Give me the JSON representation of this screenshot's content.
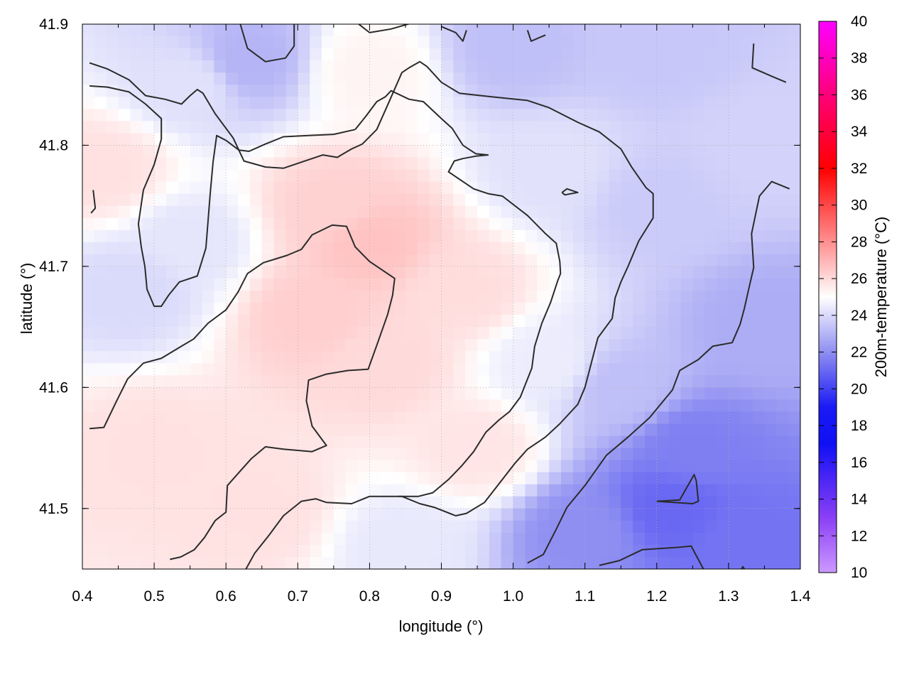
{
  "chart_data": {
    "type": "heatmap",
    "xlabel": "longitude (°)",
    "ylabel": "latitude (°)",
    "colorbar_label": "200m-temperature (°C)",
    "xlim": [
      0.4,
      1.4
    ],
    "ylim": [
      41.45,
      41.9
    ],
    "x_ticks": [
      "0.4",
      "0.5",
      "0.6",
      "0.7",
      "0.8",
      "0.9",
      "1.0",
      "1.1",
      "1.2",
      "1.3",
      "1.4"
    ],
    "y_ticks": [
      "41.5",
      "41.6",
      "41.7",
      "41.8",
      "41.9"
    ],
    "colorbar_range": [
      10,
      40
    ],
    "colorbar_ticks": [
      "10",
      "12",
      "14",
      "16",
      "18",
      "20",
      "22",
      "24",
      "26",
      "28",
      "30",
      "32",
      "34",
      "36",
      "38",
      "40"
    ],
    "grid": true,
    "colormap": [
      {
        "t": 10,
        "color": "#cc99ff"
      },
      {
        "t": 13,
        "color": "#8a3ff5"
      },
      {
        "t": 17,
        "color": "#1010f5"
      },
      {
        "t": 19,
        "color": "#1a1af5"
      },
      {
        "t": 22,
        "color": "#8f8ff2"
      },
      {
        "t": 25,
        "color": "#ffffff"
      },
      {
        "t": 28,
        "color": "#ff8f8f"
      },
      {
        "t": 32,
        "color": "#ff0000"
      },
      {
        "t": 36,
        "color": "#ff007a"
      },
      {
        "t": 40,
        "color": "#ff00ff"
      }
    ],
    "field_anchors": [
      {
        "lon": 0.43,
        "lat": 41.78,
        "t": 25.8
      },
      {
        "lon": 0.55,
        "lat": 41.85,
        "t": 24.2
      },
      {
        "lon": 0.63,
        "lat": 41.87,
        "t": 23.0
      },
      {
        "lon": 0.8,
        "lat": 41.86,
        "t": 25.3
      },
      {
        "lon": 0.75,
        "lat": 41.75,
        "t": 26.2
      },
      {
        "lon": 0.8,
        "lat": 41.72,
        "t": 26.6
      },
      {
        "lon": 0.72,
        "lat": 41.66,
        "t": 26.3
      },
      {
        "lon": 0.82,
        "lat": 41.62,
        "t": 26.0
      },
      {
        "lon": 0.93,
        "lat": 41.68,
        "t": 25.9
      },
      {
        "lon": 0.95,
        "lat": 41.55,
        "t": 25.7
      },
      {
        "lon": 0.5,
        "lat": 41.55,
        "t": 25.8
      },
      {
        "lon": 0.55,
        "lat": 41.72,
        "t": 24.3
      },
      {
        "lon": 0.47,
        "lat": 41.68,
        "t": 24.0
      },
      {
        "lon": 0.65,
        "lat": 41.5,
        "t": 25.8
      },
      {
        "lon": 0.85,
        "lat": 41.47,
        "t": 24.4
      },
      {
        "lon": 1.05,
        "lat": 41.62,
        "t": 24.5
      },
      {
        "lon": 1.05,
        "lat": 41.78,
        "t": 24.2
      },
      {
        "lon": 1.0,
        "lat": 41.88,
        "t": 23.3
      },
      {
        "lon": 1.2,
        "lat": 41.88,
        "t": 23.5
      },
      {
        "lon": 1.2,
        "lat": 41.75,
        "t": 23.6
      },
      {
        "lon": 1.35,
        "lat": 41.8,
        "t": 23.8
      },
      {
        "lon": 1.35,
        "lat": 41.65,
        "t": 22.8
      },
      {
        "lon": 1.15,
        "lat": 41.6,
        "t": 23.3
      },
      {
        "lon": 1.25,
        "lat": 41.55,
        "t": 21.6
      },
      {
        "lon": 1.22,
        "lat": 41.5,
        "t": 21.0
      },
      {
        "lon": 1.1,
        "lat": 41.48,
        "t": 22.0
      },
      {
        "lon": 1.32,
        "lat": 41.47,
        "t": 21.3
      }
    ],
    "contours": [
      {
        "points": [
          [
            0.41,
            41.868
          ],
          [
            0.435,
            41.863
          ],
          [
            0.465,
            41.854
          ],
          [
            0.488,
            41.841
          ],
          [
            0.515,
            41.838
          ],
          [
            0.538,
            41.834
          ],
          [
            0.55,
            41.841
          ],
          [
            0.56,
            41.846
          ],
          [
            0.568,
            41.843
          ],
          [
            0.585,
            41.826
          ],
          [
            0.61,
            41.806
          ],
          [
            0.625,
            41.787
          ],
          [
            0.655,
            41.782
          ],
          [
            0.68,
            41.781
          ],
          [
            0.71,
            41.787
          ],
          [
            0.735,
            41.792
          ],
          [
            0.755,
            41.79
          ],
          [
            0.775,
            41.797
          ],
          [
            0.79,
            41.801
          ]
        ]
      },
      {
        "points": [
          [
            0.62,
            41.9
          ],
          [
            0.63,
            41.88
          ],
          [
            0.655,
            41.869
          ],
          [
            0.683,
            41.872
          ],
          [
            0.695,
            41.882
          ],
          [
            0.695,
            41.9
          ]
        ]
      },
      {
        "points": [
          [
            0.785,
            41.9
          ],
          [
            0.8,
            41.893
          ],
          [
            0.83,
            41.896
          ],
          [
            0.865,
            41.902
          ]
        ]
      },
      {
        "points": [
          [
            0.9,
            41.898
          ],
          [
            0.92,
            41.893
          ],
          [
            0.93,
            41.886
          ],
          [
            0.935,
            41.895
          ]
        ]
      },
      {
        "points": [
          [
            1.02,
            41.895
          ],
          [
            1.025,
            41.886
          ],
          [
            1.045,
            41.891
          ]
        ]
      },
      {
        "points": [
          [
            1.335,
            41.884
          ],
          [
            1.333,
            41.864
          ],
          [
            1.36,
            41.857
          ],
          [
            1.38,
            41.852
          ]
        ]
      },
      {
        "points": [
          [
            0.79,
            41.801
          ],
          [
            0.81,
            41.813
          ],
          [
            0.825,
            41.833
          ],
          [
            0.845,
            41.86
          ],
          [
            0.855,
            41.864
          ],
          [
            0.87,
            41.869
          ],
          [
            0.88,
            41.865
          ],
          [
            0.9,
            41.852
          ],
          [
            0.925,
            41.843
          ],
          [
            0.97,
            41.84
          ],
          [
            1.02,
            41.837
          ],
          [
            1.05,
            41.831
          ],
          [
            1.09,
            41.819
          ],
          [
            1.12,
            41.811
          ],
          [
            1.15,
            41.797
          ],
          [
            1.165,
            41.782
          ],
          [
            1.185,
            41.765
          ],
          [
            1.195,
            41.76
          ],
          [
            1.195,
            41.74
          ],
          [
            1.175,
            41.721
          ],
          [
            1.16,
            41.7
          ],
          [
            1.15,
            41.687
          ],
          [
            1.142,
            41.674
          ],
          [
            1.138,
            41.657
          ],
          [
            1.118,
            41.641
          ],
          [
            1.107,
            41.616
          ],
          [
            1.1,
            41.6
          ],
          [
            1.09,
            41.586
          ],
          [
            1.065,
            41.57
          ],
          [
            1.045,
            41.559
          ],
          [
            1.02,
            41.549
          ],
          [
            1.002,
            41.537
          ],
          [
            0.985,
            41.524
          ],
          [
            0.96,
            41.505
          ],
          [
            0.935,
            41.496
          ],
          [
            0.92,
            41.494
          ],
          [
            0.89,
            41.501
          ],
          [
            0.87,
            41.504
          ],
          [
            0.845,
            41.51
          ],
          [
            0.8,
            41.51
          ],
          [
            0.775,
            41.504
          ],
          [
            0.74,
            41.505
          ]
        ]
      },
      {
        "points": [
          [
            0.74,
            41.505
          ],
          [
            0.725,
            41.508
          ],
          [
            0.705,
            41.506
          ],
          [
            0.68,
            41.494
          ],
          [
            0.66,
            41.478
          ],
          [
            0.64,
            41.463
          ],
          [
            0.625,
            41.447
          ]
        ]
      },
      {
        "points": [
          [
            0.41,
            41.849
          ],
          [
            0.435,
            41.848
          ],
          [
            0.465,
            41.844
          ],
          [
            0.488,
            41.834
          ],
          [
            0.51,
            41.822
          ],
          [
            0.51,
            41.805
          ],
          [
            0.5,
            41.784
          ],
          [
            0.485,
            41.763
          ],
          [
            0.478,
            41.735
          ],
          [
            0.482,
            41.716
          ],
          [
            0.487,
            41.7
          ],
          [
            0.49,
            41.681
          ],
          [
            0.5,
            41.667
          ],
          [
            0.51,
            41.667
          ],
          [
            0.52,
            41.676
          ],
          [
            0.535,
            41.687
          ],
          [
            0.56,
            41.692
          ],
          [
            0.572,
            41.715
          ],
          [
            0.575,
            41.737
          ],
          [
            0.578,
            41.76
          ],
          [
            0.582,
            41.786
          ],
          [
            0.587,
            41.808
          ],
          [
            0.6,
            41.804
          ],
          [
            0.618,
            41.796
          ],
          [
            0.632,
            41.795
          ],
          [
            0.655,
            41.801
          ],
          [
            0.68,
            41.807
          ],
          [
            0.715,
            41.808
          ],
          [
            0.75,
            41.809
          ],
          [
            0.78,
            41.813
          ]
        ]
      },
      {
        "points": [
          [
            0.78,
            41.813
          ],
          [
            0.795,
            41.824
          ],
          [
            0.81,
            41.836
          ],
          [
            0.822,
            41.84
          ],
          [
            0.83,
            41.845
          ],
          [
            0.855,
            41.838
          ],
          [
            0.875,
            41.836
          ],
          [
            0.9,
            41.822
          ],
          [
            0.915,
            41.814
          ],
          [
            0.93,
            41.8
          ],
          [
            0.948,
            41.793
          ],
          [
            0.965,
            41.792
          ],
          [
            0.948,
            41.791
          ],
          [
            0.93,
            41.789
          ],
          [
            0.918,
            41.787
          ],
          [
            0.91,
            41.778
          ],
          [
            0.93,
            41.77
          ],
          [
            0.945,
            41.764
          ],
          [
            0.965,
            41.76
          ],
          [
            0.985,
            41.758
          ],
          [
            1.02,
            41.742
          ],
          [
            1.045,
            41.727
          ],
          [
            1.06,
            41.719
          ],
          [
            1.065,
            41.704
          ],
          [
            1.066,
            41.694
          ],
          [
            1.062,
            41.688
          ],
          [
            1.052,
            41.67
          ],
          [
            1.04,
            41.653
          ],
          [
            1.03,
            41.634
          ],
          [
            1.026,
            41.616
          ],
          [
            1.01,
            41.592
          ],
          [
            0.995,
            41.58
          ],
          [
            0.98,
            41.573
          ],
          [
            0.962,
            41.563
          ],
          [
            0.945,
            41.547
          ],
          [
            0.928,
            41.535
          ],
          [
            0.91,
            41.524
          ],
          [
            0.888,
            41.513
          ],
          [
            0.868,
            41.51
          ],
          [
            0.84,
            41.51
          ]
        ]
      },
      {
        "points": [
          [
            0.415,
            41.763
          ],
          [
            0.418,
            41.748
          ],
          [
            0.412,
            41.744
          ]
        ]
      },
      {
        "points": [
          [
            0.41,
            41.566
          ],
          [
            0.43,
            41.567
          ],
          [
            0.447,
            41.588
          ],
          [
            0.463,
            41.607
          ],
          [
            0.485,
            41.62
          ],
          [
            0.51,
            41.624
          ],
          [
            0.535,
            41.633
          ],
          [
            0.555,
            41.64
          ],
          [
            0.575,
            41.653
          ],
          [
            0.6,
            41.664
          ],
          [
            0.617,
            41.679
          ],
          [
            0.63,
            41.694
          ],
          [
            0.652,
            41.703
          ],
          [
            0.685,
            41.709
          ],
          [
            0.705,
            41.714
          ],
          [
            0.72,
            41.726
          ],
          [
            0.748,
            41.734
          ],
          [
            0.768,
            41.733
          ],
          [
            0.78,
            41.716
          ],
          [
            0.8,
            41.704
          ],
          [
            0.835,
            41.69
          ],
          [
            0.832,
            41.676
          ],
          [
            0.825,
            41.66
          ],
          [
            0.812,
            41.638
          ],
          [
            0.798,
            41.615
          ],
          [
            0.77,
            41.614
          ],
          [
            0.74,
            41.611
          ],
          [
            0.715,
            41.606
          ],
          [
            0.712,
            41.589
          ],
          [
            0.72,
            41.568
          ],
          [
            0.74,
            41.552
          ],
          [
            0.72,
            41.547
          ],
          [
            0.68,
            41.549
          ],
          [
            0.655,
            41.551
          ],
          [
            0.635,
            41.541
          ],
          [
            0.62,
            41.531
          ],
          [
            0.602,
            41.519
          ],
          [
            0.6,
            41.497
          ],
          [
            0.585,
            41.49
          ],
          [
            0.57,
            41.476
          ],
          [
            0.556,
            41.466
          ],
          [
            0.537,
            41.46
          ],
          [
            0.522,
            41.458
          ]
        ]
      },
      {
        "points": [
          [
            1.068,
            41.761
          ],
          [
            1.075,
            41.764
          ],
          [
            1.09,
            41.761
          ],
          [
            1.072,
            41.759
          ],
          [
            1.068,
            41.761
          ]
        ]
      },
      {
        "points": [
          [
            1.385,
            41.764
          ],
          [
            1.36,
            41.77
          ],
          [
            1.343,
            41.758
          ],
          [
            1.332,
            41.727
          ],
          [
            1.335,
            41.699
          ],
          [
            1.328,
            41.681
          ],
          [
            1.322,
            41.665
          ],
          [
            1.316,
            41.652
          ],
          [
            1.305,
            41.637
          ],
          [
            1.278,
            41.634
          ],
          [
            1.258,
            41.623
          ],
          [
            1.232,
            41.614
          ],
          [
            1.222,
            41.598
          ],
          [
            1.19,
            41.575
          ],
          [
            1.16,
            41.559
          ],
          [
            1.13,
            41.544
          ],
          [
            1.1,
            41.519
          ],
          [
            1.075,
            41.501
          ],
          [
            1.06,
            41.483
          ],
          [
            1.042,
            41.462
          ],
          [
            1.02,
            41.455
          ]
        ]
      },
      {
        "points": [
          [
            1.12,
            41.453
          ],
          [
            1.148,
            41.457
          ],
          [
            1.18,
            41.466
          ],
          [
            1.232,
            41.468
          ],
          [
            1.248,
            41.469
          ],
          [
            1.265,
            41.45
          ]
        ]
      },
      {
        "points": [
          [
            1.2,
            41.506
          ],
          [
            1.232,
            41.507
          ],
          [
            1.252,
            41.528
          ],
          [
            1.255,
            41.523
          ],
          [
            1.258,
            41.506
          ],
          [
            1.25,
            41.504
          ],
          [
            1.2,
            41.506
          ]
        ]
      },
      {
        "points": [
          [
            1.318,
            41.45
          ],
          [
            1.32,
            41.452
          ],
          [
            1.322,
            41.45
          ]
        ]
      }
    ]
  }
}
